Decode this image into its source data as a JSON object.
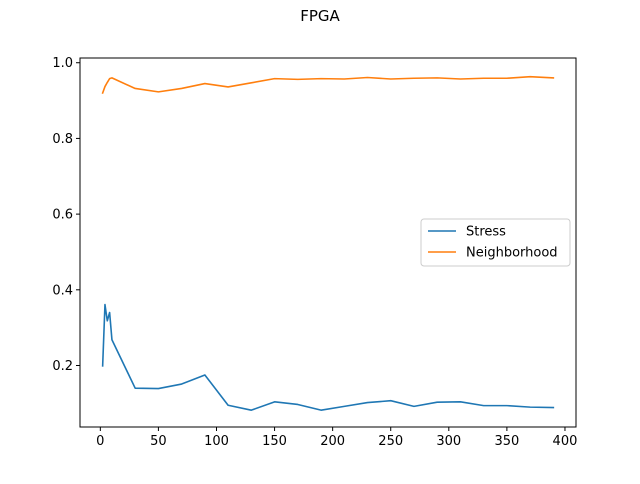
{
  "chart_data": {
    "type": "line",
    "title": "FPGA",
    "xlabel": "",
    "ylabel": "",
    "xlim": [
      -17.5,
      409.5
    ],
    "ylim": [
      0.0375,
      1.0125
    ],
    "xticks": [
      0,
      50,
      100,
      150,
      200,
      250,
      300,
      350,
      400
    ],
    "xtick_labels": [
      "0",
      "50",
      "100",
      "150",
      "200",
      "250",
      "300",
      "350",
      "400"
    ],
    "yticks": [
      0.2,
      0.4,
      0.6,
      0.8,
      1.0
    ],
    "ytick_labels": [
      "0.2",
      "0.4",
      "0.6",
      "0.8",
      "1.0"
    ],
    "grid": false,
    "legend_position": "center-right",
    "series": [
      {
        "name": "Stress",
        "color": "#1f77b4",
        "x": [
          2,
          4,
          6,
          8,
          10,
          30,
          50,
          70,
          90,
          110,
          130,
          150,
          170,
          190,
          210,
          230,
          250,
          270,
          290,
          310,
          330,
          350,
          370,
          390
        ],
        "y": [
          0.199,
          0.361,
          0.318,
          0.34,
          0.268,
          0.14,
          0.139,
          0.151,
          0.175,
          0.095,
          0.082,
          0.104,
          0.097,
          0.082,
          0.092,
          0.102,
          0.107,
          0.092,
          0.103,
          0.104,
          0.094,
          0.094,
          0.09,
          0.089
        ]
      },
      {
        "name": "Neighborhood",
        "color": "#ff7f0e",
        "x": [
          2,
          4,
          6,
          8,
          10,
          30,
          50,
          70,
          90,
          110,
          130,
          150,
          170,
          190,
          210,
          230,
          250,
          270,
          290,
          310,
          330,
          350,
          370,
          390
        ],
        "y": [
          0.92,
          0.937,
          0.948,
          0.958,
          0.96,
          0.932,
          0.923,
          0.932,
          0.945,
          0.936,
          0.947,
          0.958,
          0.956,
          0.958,
          0.957,
          0.961,
          0.957,
          0.959,
          0.96,
          0.957,
          0.959,
          0.959,
          0.963,
          0.96
        ]
      }
    ]
  }
}
